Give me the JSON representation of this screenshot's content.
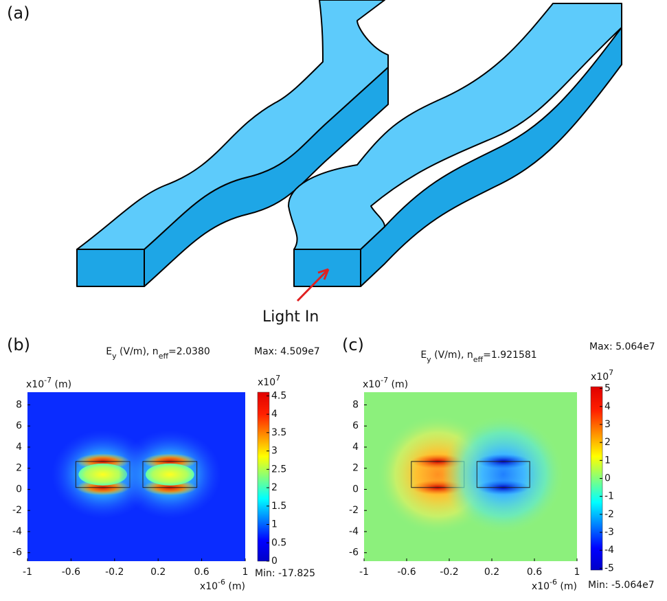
{
  "diagram": {
    "label": "(a)",
    "annotation": "Light In"
  },
  "chart_data": [
    {
      "type": "heatmap",
      "panel": "(b)",
      "title": {
        "field": "E",
        "field_sub": "y",
        "units": " (V/m), n",
        "index_sub": "eff",
        "value": "=2.0380"
      },
      "xlim": [
        -1,
        1
      ],
      "xticks": [
        -1,
        -0.6,
        -0.2,
        0.2,
        0.6,
        1
      ],
      "xlabel": {
        "base": "x10",
        "exp": "-6",
        "unit": " (m)"
      },
      "ylim": [
        -6.8,
        9.2
      ],
      "yticks": [
        -6,
        -4,
        -2,
        0,
        2,
        4,
        6,
        8
      ],
      "ylabel": {
        "base": "x10",
        "exp": "-7",
        "unit": " (m)"
      },
      "colorbar": {
        "lim": [
          0,
          4.6
        ],
        "ticks": [
          0,
          0.5,
          1,
          1.5,
          2,
          2.5,
          3,
          3.5,
          4,
          4.5
        ],
        "label": {
          "base": "x10",
          "exp": "7"
        },
        "max_label": "Max: 4.509e7",
        "min_label": "Min: -17.825"
      }
    },
    {
      "type": "heatmap",
      "panel": "(c)",
      "title": {
        "field": "E",
        "field_sub": "y",
        "units": " (V/m), n",
        "index_sub": "eff",
        "value": "=1.921581"
      },
      "xlim": [
        -1,
        1
      ],
      "xticks": [
        -1,
        -0.6,
        -0.2,
        0.2,
        0.6,
        1
      ],
      "xlabel": {
        "base": "x10",
        "exp": "-6",
        "unit": " (m)"
      },
      "ylim": [
        -6.8,
        9.2
      ],
      "yticks": [
        -6,
        -4,
        -2,
        0,
        2,
        4,
        6,
        8
      ],
      "ylabel": {
        "base": "x10",
        "exp": "-7",
        "unit": " (m)"
      },
      "colorbar": {
        "lim": [
          -5.1,
          5.1
        ],
        "ticks": [
          -5,
          -4,
          -3,
          -2,
          -1,
          0,
          1,
          2,
          3,
          4,
          5
        ],
        "label": {
          "base": "x10",
          "exp": "7"
        },
        "max_label": "Max: 5.064e7",
        "min_label": "Min: -5.064e7"
      }
    }
  ]
}
